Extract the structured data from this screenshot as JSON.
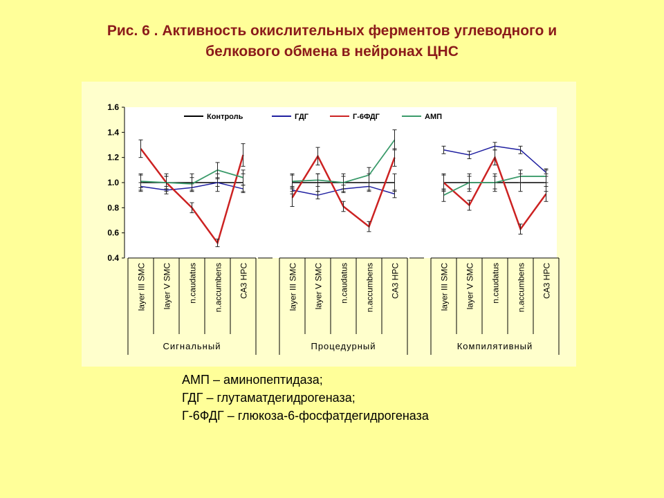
{
  "title": {
    "line1": "Рис. 6 . Активность окислительных ферментов углеводного и",
    "line2": "белкового обмена в  нейронах ЦНС"
  },
  "notes": [
    "АМП – аминопептидаза;",
    "ГДГ – глутаматдегидрогеназа;",
    "Г-6ФДГ – глюкоза-6-фосфатдегидрогеназа"
  ],
  "chart_data": {
    "type": "line",
    "ylim": [
      0.4,
      1.6
    ],
    "yticks": [
      "1.6",
      "1.4",
      "1.2",
      "1.0",
      "0.8",
      "0.6",
      "0.4"
    ],
    "grid": false,
    "legend_position": "top",
    "groups": [
      {
        "name": "Сигнальный",
        "categories": [
          "layer III SMC",
          "layer V SMC",
          "n.caudatus",
          "n.accumbens",
          "CA3 HPC"
        ]
      },
      {
        "name": "Процедурный",
        "categories": [
          "layer III SMC",
          "layer V SMC",
          "n.caudatus",
          "n.accumbens",
          "CA3 HPC"
        ]
      },
      {
        "name": "Компилятивный",
        "categories": [
          "layer III SMC",
          "layer V SMC",
          "n.caudatus",
          "n.accumbens",
          "CA3 HPC"
        ]
      }
    ],
    "series": [
      {
        "name": "Контроль",
        "color": "#000000",
        "values": [
          [
            1.0,
            1.0,
            1.0,
            1.0,
            1.0
          ],
          [
            1.0,
            1.0,
            1.0,
            1.0,
            1.0
          ],
          [
            1.0,
            1.0,
            1.0,
            1.0,
            1.0
          ]
        ],
        "errors": [
          [
            0.07,
            0.07,
            0.07,
            0.07,
            0.07
          ],
          [
            0.07,
            0.07,
            0.07,
            0.07,
            0.07
          ],
          [
            0.07,
            0.07,
            0.07,
            0.07,
            0.07
          ]
        ]
      },
      {
        "name": "ГДГ",
        "color": "#1F1FA0",
        "values": [
          [
            0.97,
            0.94,
            0.96,
            1.0,
            0.95
          ],
          [
            0.94,
            0.9,
            0.95,
            0.97,
            0.91
          ],
          [
            1.26,
            1.22,
            1.29,
            1.26,
            1.08
          ]
        ],
        "errors": [
          [
            0.03,
            0.03,
            0.03,
            0.03,
            0.03
          ],
          [
            0.03,
            0.03,
            0.03,
            0.03,
            0.03
          ],
          [
            0.03,
            0.03,
            0.03,
            0.03,
            0.03
          ]
        ]
      },
      {
        "name": "Г-6ФДГ",
        "color": "#CC2222",
        "values": [
          [
            1.27,
            1.0,
            0.8,
            0.52,
            1.22
          ],
          [
            0.88,
            1.21,
            0.81,
            0.65,
            1.2
          ],
          [
            1.0,
            0.82,
            1.2,
            0.63,
            0.91
          ]
        ],
        "errors": [
          [
            0.07,
            0.05,
            0.04,
            0.03,
            0.09
          ],
          [
            0.07,
            0.07,
            0.04,
            0.04,
            0.07
          ],
          [
            0.06,
            0.04,
            0.06,
            0.04,
            0.06
          ]
        ]
      },
      {
        "name": "АМП",
        "color": "#3A9A6A",
        "values": [
          [
            1.01,
            1.0,
            0.99,
            1.1,
            1.04
          ],
          [
            1.01,
            1.02,
            1.0,
            1.06,
            1.34
          ],
          [
            0.9,
            1.0,
            1.0,
            1.05,
            1.05
          ]
        ],
        "errors": [
          [
            0.05,
            0.05,
            0.05,
            0.06,
            0.06
          ],
          [
            0.05,
            0.05,
            0.05,
            0.06,
            0.08
          ],
          [
            0.05,
            0.05,
            0.05,
            0.05,
            0.05
          ]
        ]
      }
    ]
  }
}
